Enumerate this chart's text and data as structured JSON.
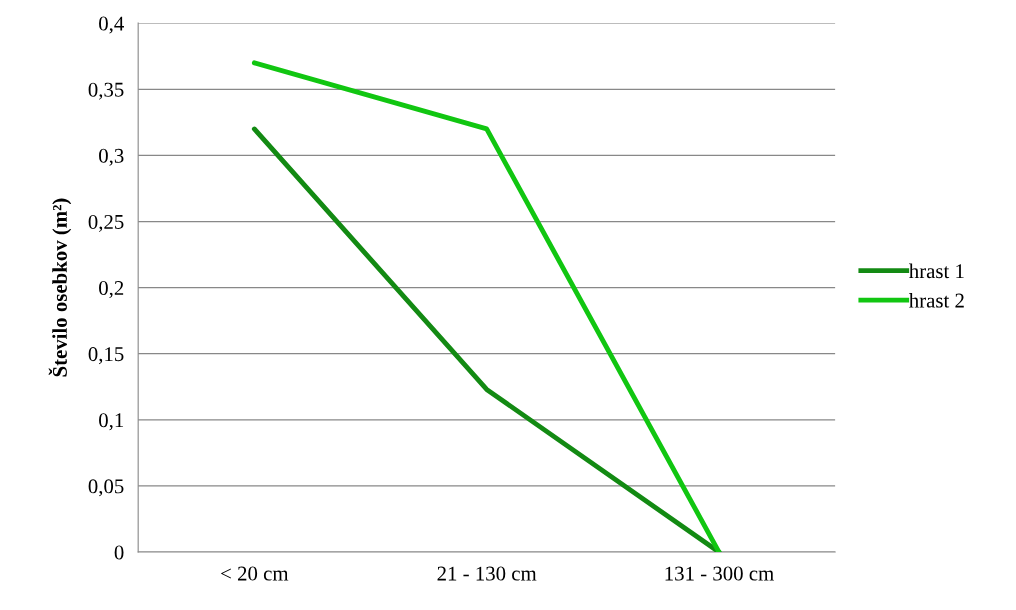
{
  "chart_data": {
    "type": "line",
    "ylabel": "Število osebkov (m²)",
    "categories": [
      "< 20 cm",
      "21 - 130 cm",
      "131 - 300 cm"
    ],
    "series": [
      {
        "name": "hrast 1",
        "color": "#138a13",
        "values": [
          0.32,
          0.123,
          0
        ]
      },
      {
        "name": "hrast 2",
        "color": "#11c611",
        "values": [
          0.37,
          0.32,
          0
        ]
      }
    ],
    "ylim": [
      0,
      0.4
    ],
    "yticks": [
      {
        "value": 0,
        "label": "0"
      },
      {
        "value": 0.05,
        "label": "0,05"
      },
      {
        "value": 0.1,
        "label": "0,1"
      },
      {
        "value": 0.15,
        "label": "0,15"
      },
      {
        "value": 0.2,
        "label": "0,2"
      },
      {
        "value": 0.25,
        "label": "0,25"
      },
      {
        "value": 0.3,
        "label": "0,3"
      },
      {
        "value": 0.35,
        "label": "0,35"
      },
      {
        "value": 0.4,
        "label": "0,4"
      }
    ],
    "grid": "y",
    "legend": "right",
    "marker": "none",
    "line_style": "solid"
  }
}
